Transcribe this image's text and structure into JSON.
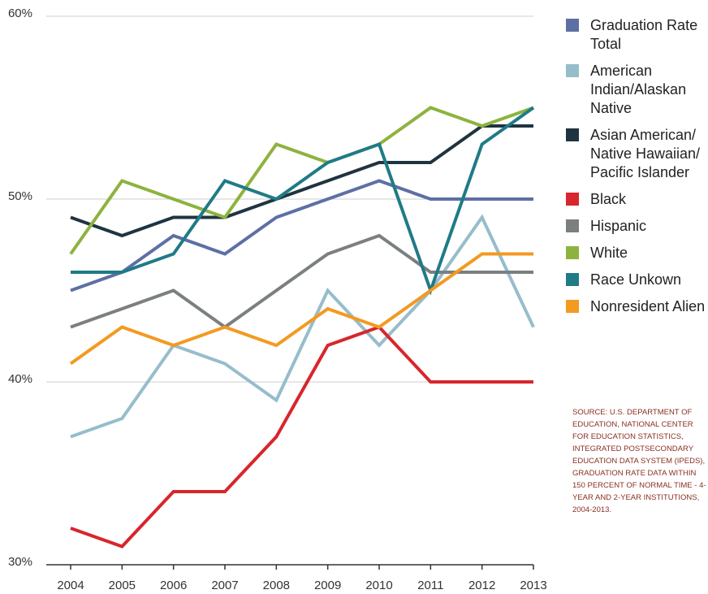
{
  "chart_data": {
    "type": "line",
    "x": [
      2004,
      2005,
      2006,
      2007,
      2008,
      2009,
      2010,
      2011,
      2012,
      2013
    ],
    "xlim": [
      2004,
      2013
    ],
    "xticks": [
      2004,
      2005,
      2006,
      2007,
      2008,
      2009,
      2010,
      2011,
      2012,
      2013
    ],
    "ylim": [
      30,
      60
    ],
    "yticks": [
      {
        "value": 30,
        "label": "30%"
      },
      {
        "value": 40,
        "label": "40%"
      },
      {
        "value": 50,
        "label": "50%"
      },
      {
        "value": 60,
        "label": "60%"
      }
    ],
    "grid": true,
    "series": [
      {
        "name": "Graduation Rate Total",
        "color": "#5d6fa5",
        "values": [
          45,
          46,
          48,
          47,
          49,
          50,
          51,
          50,
          50,
          50
        ]
      },
      {
        "name": "American Indian/Alaskan Native",
        "color": "#96bdcb",
        "values": [
          37,
          38,
          42,
          41,
          39,
          45,
          42,
          45,
          49,
          43
        ]
      },
      {
        "name": "Asian American/ Native Hawaiian/ Pacific Islander",
        "color": "#1f3440",
        "values": [
          49,
          48,
          49,
          49,
          50,
          51,
          52,
          52,
          54,
          54
        ]
      },
      {
        "name": "Black",
        "color": "#d7262c",
        "values": [
          32,
          31,
          34,
          34,
          37,
          42,
          43,
          40,
          40,
          40
        ]
      },
      {
        "name": "Hispanic",
        "color": "#7b7f7f",
        "values": [
          43,
          44,
          45,
          43,
          45,
          47,
          48,
          46,
          46,
          46
        ]
      },
      {
        "name": "White",
        "color": "#8db33e",
        "values": [
          47,
          51,
          50,
          49,
          53,
          52,
          53,
          55,
          54,
          55
        ]
      },
      {
        "name": "Race Unkown",
        "color": "#1f7b86",
        "values": [
          46,
          46,
          47,
          51,
          50,
          52,
          53,
          45,
          53,
          55
        ]
      },
      {
        "name": "Nonresident Alien",
        "color": "#f39a21",
        "values": [
          41,
          43,
          42,
          43,
          42,
          44,
          43,
          45,
          47,
          47
        ]
      }
    ],
    "source": "SOURCE: U.S. DEPARTMENT OF EDUCATION, NATIONAL CENTER FOR EDUCATION STATISTICS, INTEGRATED POSTSECONDARY EDUCATION DATA SYSTEM (IPEDS), GRADUATION RATE DATA WITHIN 150 PERCENT OF NORMAL TIME - 4-YEAR AND 2-YEAR INSTITUTIONS, 2004-2013."
  }
}
